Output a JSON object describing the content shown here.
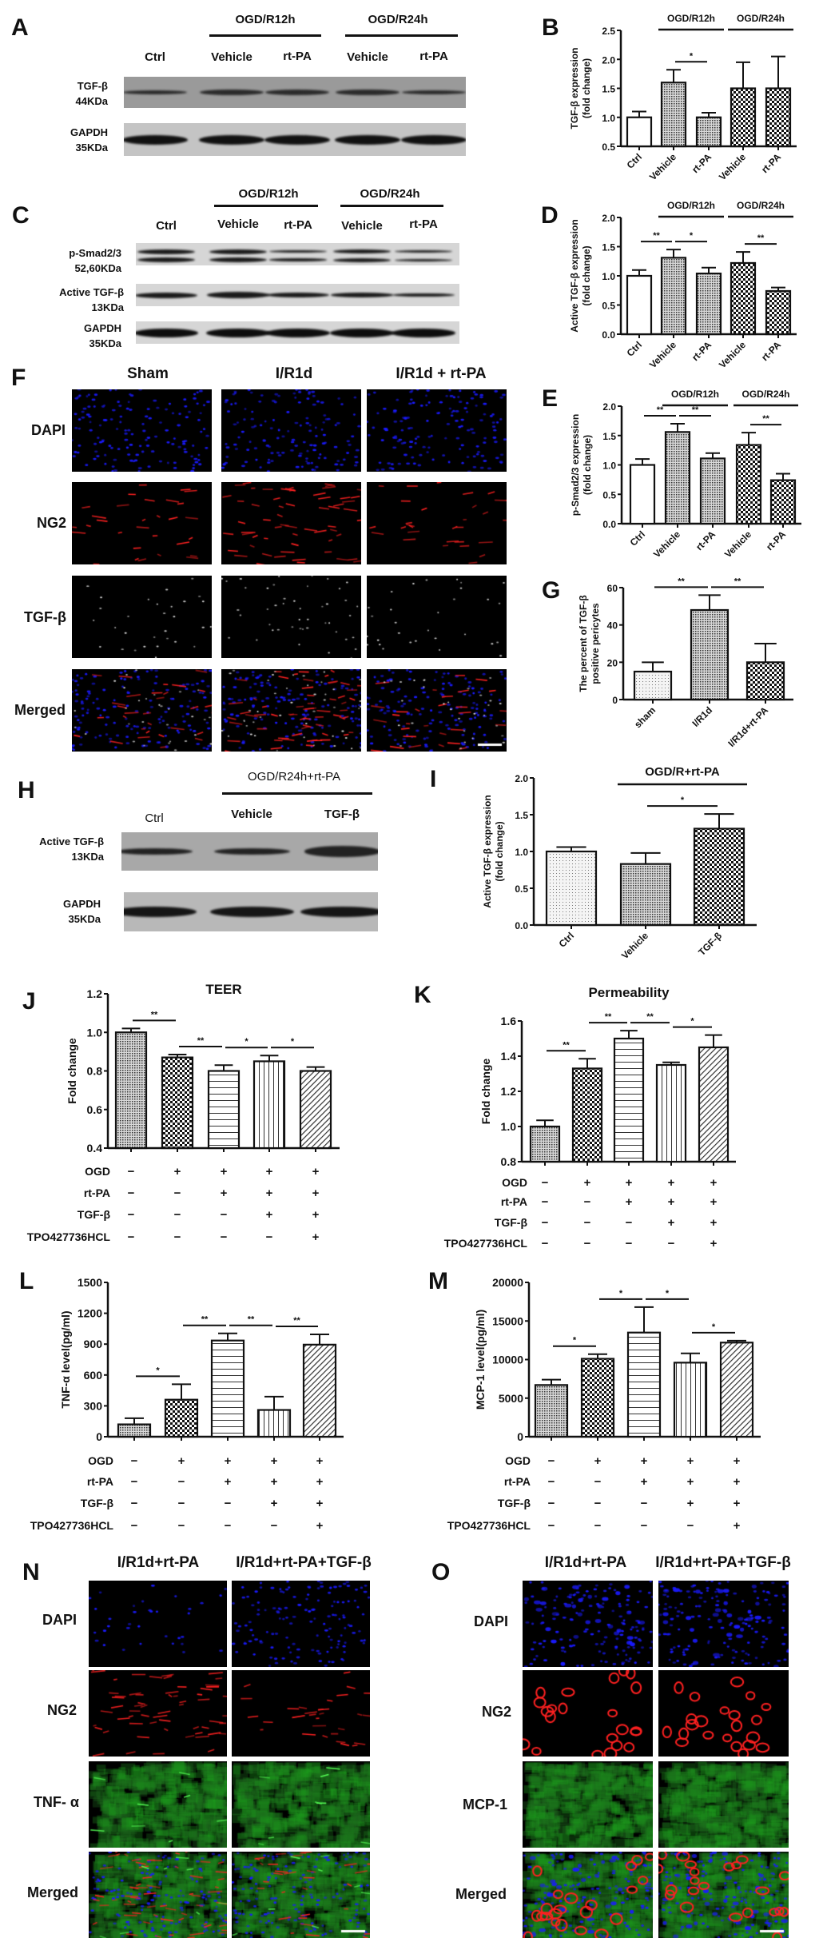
{
  "panel_letters": {
    "A": "A",
    "B": "B",
    "C": "C",
    "D": "D",
    "E": "E",
    "F": "F",
    "G": "G",
    "H": "H",
    "I": "I",
    "J": "J",
    "K": "K",
    "L": "L",
    "M": "M",
    "N": "N",
    "O": "O"
  },
  "blot_A": {
    "groups": [
      "OGD/R12h",
      "OGD/R24h"
    ],
    "lanes": [
      "Ctrl",
      "Vehicle",
      "rt-PA",
      "Vehicle",
      "rt-PA"
    ],
    "rows": [
      {
        "name": "TGF-β",
        "size": "44KDa"
      },
      {
        "name": "GAPDH",
        "size": "35KDa"
      }
    ]
  },
  "blot_C": {
    "groups": [
      "OGD/R12h",
      "OGD/R24h"
    ],
    "lanes": [
      "Ctrl",
      "Vehicle",
      "rt-PA",
      "Vehicle",
      "rt-PA"
    ],
    "rows": [
      {
        "name": "p-Smad2/3",
        "size": "52,60KDa"
      },
      {
        "name": "Active TGF-β",
        "size": "13KDa"
      },
      {
        "name": "GAPDH",
        "size": "35KDa"
      }
    ]
  },
  "blot_H": {
    "group": "OGD/R24h+rt-PA",
    "lanes": [
      "Ctrl",
      "Vehicle",
      "TGF-β"
    ],
    "rows": [
      {
        "name": "Active TGF-β",
        "size": "13KDa"
      },
      {
        "name": "GAPDH",
        "size": "35KDa"
      }
    ]
  },
  "micro_F": {
    "columns": [
      "Sham",
      "I/R1d",
      "I/R1d + rt-PA"
    ],
    "rows": [
      "DAPI",
      "NG2",
      "TGF-β",
      "Merged"
    ]
  },
  "micro_N": {
    "columns": [
      "I/R1d+rt-PA",
      "I/R1d+rt-PA+TGF-β"
    ],
    "rows": [
      "DAPI",
      "NG2",
      "TNF- α",
      "Merged"
    ]
  },
  "micro_O": {
    "columns": [
      "I/R1d+rt-PA",
      "I/R1d+rt-PA+TGF-β"
    ],
    "rows": [
      "DAPI",
      "NG2",
      "MCP-1",
      "Merged"
    ]
  },
  "stain_colors": {
    "DAPI": "#1a1aff",
    "NG2": "#ff2020",
    "TGF-β": "#ffffff",
    "TNF-α": "#22cc22",
    "MCP-1": "#22cc22"
  },
  "chart_data": [
    {
      "id": "B",
      "type": "bar",
      "categories": [
        "Ctrl",
        "Vehicle",
        "rt-PA",
        "Vehicle",
        "rt-PA"
      ],
      "values": [
        1.0,
        1.6,
        1.0,
        1.5,
        1.5
      ],
      "errors": [
        0.1,
        0.22,
        0.08,
        0.45,
        0.55
      ],
      "ylabel": [
        "TGF-β expression",
        "(fold change)"
      ],
      "ylim": [
        0.5,
        2.5
      ],
      "yticks": [
        "0.5",
        "1.0",
        "1.5",
        "2.0",
        "2.5"
      ],
      "groups": [
        {
          "label": "OGD/R12h",
          "from": 1,
          "to": 2
        },
        {
          "label": "OGD/R24h",
          "from": 3,
          "to": 4
        }
      ],
      "significance": [
        {
          "from": 1,
          "to": 2,
          "label": "*"
        }
      ]
    },
    {
      "id": "D",
      "type": "bar",
      "categories": [
        "Ctrl",
        "Vehicle",
        "rt-PA",
        "Vehicle",
        "rt-PA"
      ],
      "values": [
        1.0,
        1.31,
        1.04,
        1.22,
        0.74
      ],
      "errors": [
        0.1,
        0.14,
        0.1,
        0.19,
        0.06
      ],
      "ylabel": [
        "Active TGF-β expression",
        "(fold change)"
      ],
      "ylim": [
        0,
        2.0
      ],
      "yticks": [
        "0.0",
        "0.5",
        "1.0",
        "1.5",
        "2.0"
      ],
      "groups": [
        {
          "label": "OGD/R12h",
          "from": 1,
          "to": 2
        },
        {
          "label": "OGD/R24h",
          "from": 3,
          "to": 4
        }
      ],
      "significance": [
        {
          "from": 0,
          "to": 1,
          "label": "**"
        },
        {
          "from": 1,
          "to": 2,
          "label": "*"
        },
        {
          "from": 3,
          "to": 4,
          "label": "**"
        }
      ]
    },
    {
      "id": "E",
      "type": "bar",
      "categories": [
        "Ctrl",
        "Vehicle",
        "rt-PA",
        "Vehicle",
        "rt-PA"
      ],
      "values": [
        1.0,
        1.56,
        1.11,
        1.34,
        0.74
      ],
      "errors": [
        0.1,
        0.14,
        0.09,
        0.21,
        0.11
      ],
      "ylabel": [
        "p-Smad2/3 expression",
        "(fold change)"
      ],
      "ylim": [
        0,
        2.0
      ],
      "yticks": [
        "0.0",
        "0.5",
        "1.0",
        "1.5",
        "2.0"
      ],
      "groups": [
        {
          "label": "OGD/R12h",
          "from": 1,
          "to": 2
        },
        {
          "label": "OGD/R24h",
          "from": 3,
          "to": 4
        }
      ],
      "significance": [
        {
          "from": 0,
          "to": 1,
          "label": "**"
        },
        {
          "from": 1,
          "to": 2,
          "label": "**"
        },
        {
          "from": 3,
          "to": 4,
          "label": "**"
        }
      ]
    },
    {
      "id": "G",
      "type": "bar",
      "categories": [
        "sham",
        "I/R1d",
        "I/R1d+rt-PA"
      ],
      "values": [
        15,
        48,
        20
      ],
      "errors": [
        5,
        8,
        10
      ],
      "ylabel": [
        "The percent of TGF-β",
        "positive pericytes"
      ],
      "ylim": [
        0,
        60
      ],
      "yticks": [
        "0",
        "20",
        "40",
        "60"
      ],
      "groups": [],
      "significance": [
        {
          "from": 0,
          "to": 1,
          "label": "**"
        },
        {
          "from": 1,
          "to": 2,
          "label": "**"
        }
      ]
    },
    {
      "id": "I",
      "type": "bar",
      "categories": [
        "Ctrl",
        "Vehicle",
        "TGF-β"
      ],
      "values": [
        1.0,
        0.83,
        1.31
      ],
      "errors": [
        0.06,
        0.15,
        0.2
      ],
      "ylabel": [
        "Active TGF-β expression",
        "(fold change)"
      ],
      "ylim": [
        0,
        2.0
      ],
      "yticks": [
        "0.0",
        "0.5",
        "1.0",
        "1.5",
        "2.0"
      ],
      "groups": [
        {
          "label": "OGD/R+rt-PA",
          "from": 1,
          "to": 2
        }
      ],
      "significance": [
        {
          "from": 1,
          "to": 2,
          "label": "*"
        }
      ]
    },
    {
      "id": "J",
      "type": "bar",
      "title": "TEER",
      "values": [
        1.0,
        0.87,
        0.8,
        0.85,
        0.8
      ],
      "errors": [
        0.02,
        0.015,
        0.03,
        0.03,
        0.02
      ],
      "ylabel": [
        "Fold change"
      ],
      "ylim": [
        0.4,
        1.2
      ],
      "yticks": [
        "0.4",
        "0.6",
        "0.8",
        "1.0",
        "1.2"
      ],
      "conditions": [
        {
          "label": "OGD",
          "signs": [
            "−",
            "+",
            "+",
            "+",
            "+"
          ]
        },
        {
          "label": "rt-PA",
          "signs": [
            "−",
            "−",
            "+",
            "+",
            "+"
          ]
        },
        {
          "label": "TGF-β",
          "signs": [
            "−",
            "−",
            "−",
            "+",
            "+"
          ]
        },
        {
          "label": "TPO427736HCL",
          "signs": [
            "−",
            "−",
            "−",
            "−",
            "+"
          ]
        }
      ],
      "significance": [
        {
          "from": 0,
          "to": 1,
          "label": "**"
        },
        {
          "from": 1,
          "to": 2,
          "label": "**"
        },
        {
          "from": 2,
          "to": 3,
          "label": "*"
        },
        {
          "from": 3,
          "to": 4,
          "label": "*"
        }
      ]
    },
    {
      "id": "K",
      "type": "bar",
      "title": "Permeability",
      "values": [
        1.0,
        1.33,
        1.5,
        1.35,
        1.45
      ],
      "errors": [
        0.035,
        0.055,
        0.045,
        0.015,
        0.07
      ],
      "ylabel": [
        "Fold change"
      ],
      "ylim": [
        0.8,
        1.6
      ],
      "yticks": [
        "0.8",
        "1.0",
        "1.2",
        "1.4",
        "1.6"
      ],
      "conditions": [
        {
          "label": "OGD",
          "signs": [
            "−",
            "+",
            "+",
            "+",
            "+"
          ]
        },
        {
          "label": "rt-PA",
          "signs": [
            "−",
            "−",
            "+",
            "+",
            "+"
          ]
        },
        {
          "label": "TGF-β",
          "signs": [
            "−",
            "−",
            "−",
            "+",
            "+"
          ]
        },
        {
          "label": "TPO427736HCL",
          "signs": [
            "−",
            "−",
            "−",
            "−",
            "+"
          ]
        }
      ],
      "significance": [
        {
          "from": 0,
          "to": 1,
          "label": "**"
        },
        {
          "from": 1,
          "to": 2,
          "label": "**"
        },
        {
          "from": 2,
          "to": 3,
          "label": "**"
        },
        {
          "from": 3,
          "to": 4,
          "label": "*"
        }
      ]
    },
    {
      "id": "L",
      "type": "bar",
      "values": [
        120,
        360,
        935,
        260,
        895
      ],
      "errors": [
        60,
        150,
        70,
        130,
        100
      ],
      "ylabel": [
        "TNF-α level(pg/ml)"
      ],
      "ylim": [
        0,
        1500
      ],
      "yticks": [
        "0",
        "300",
        "600",
        "900",
        "1200",
        "1500"
      ],
      "conditions": [
        {
          "label": "OGD",
          "signs": [
            "−",
            "+",
            "+",
            "+",
            "+"
          ]
        },
        {
          "label": "rt-PA",
          "signs": [
            "−",
            "−",
            "+",
            "+",
            "+"
          ]
        },
        {
          "label": "TGF-β",
          "signs": [
            "−",
            "−",
            "−",
            "+",
            "+"
          ]
        },
        {
          "label": "TPO427736HCL",
          "signs": [
            "−",
            "−",
            "−",
            "−",
            "+"
          ]
        }
      ],
      "significance": [
        {
          "from": 0,
          "to": 1,
          "label": "*"
        },
        {
          "from": 1,
          "to": 2,
          "label": "**"
        },
        {
          "from": 2,
          "to": 3,
          "label": "**"
        },
        {
          "from": 3,
          "to": 4,
          "label": "**"
        }
      ]
    },
    {
      "id": "M",
      "type": "bar",
      "values": [
        6700,
        10100,
        13500,
        9600,
        12200
      ],
      "errors": [
        700,
        600,
        3300,
        1200,
        250
      ],
      "ylabel": [
        "MCP-1 level(pg/ml)"
      ],
      "ylim": [
        0,
        20000
      ],
      "yticks": [
        "0",
        "5000",
        "10000",
        "15000",
        "20000"
      ],
      "conditions": [
        {
          "label": "OGD",
          "signs": [
            "−",
            "+",
            "+",
            "+",
            "+"
          ]
        },
        {
          "label": "rt-PA",
          "signs": [
            "−",
            "−",
            "+",
            "+",
            "+"
          ]
        },
        {
          "label": "TGF-β",
          "signs": [
            "−",
            "−",
            "−",
            "+",
            "+"
          ]
        },
        {
          "label": "TPO427736HCL",
          "signs": [
            "−",
            "−",
            "−",
            "−",
            "+"
          ]
        }
      ],
      "significance": [
        {
          "from": 0,
          "to": 1,
          "label": "*"
        },
        {
          "from": 1,
          "to": 2,
          "label": "*"
        },
        {
          "from": 2,
          "to": 3,
          "label": "*"
        },
        {
          "from": 3,
          "to": 4,
          "label": "*"
        }
      ]
    }
  ]
}
